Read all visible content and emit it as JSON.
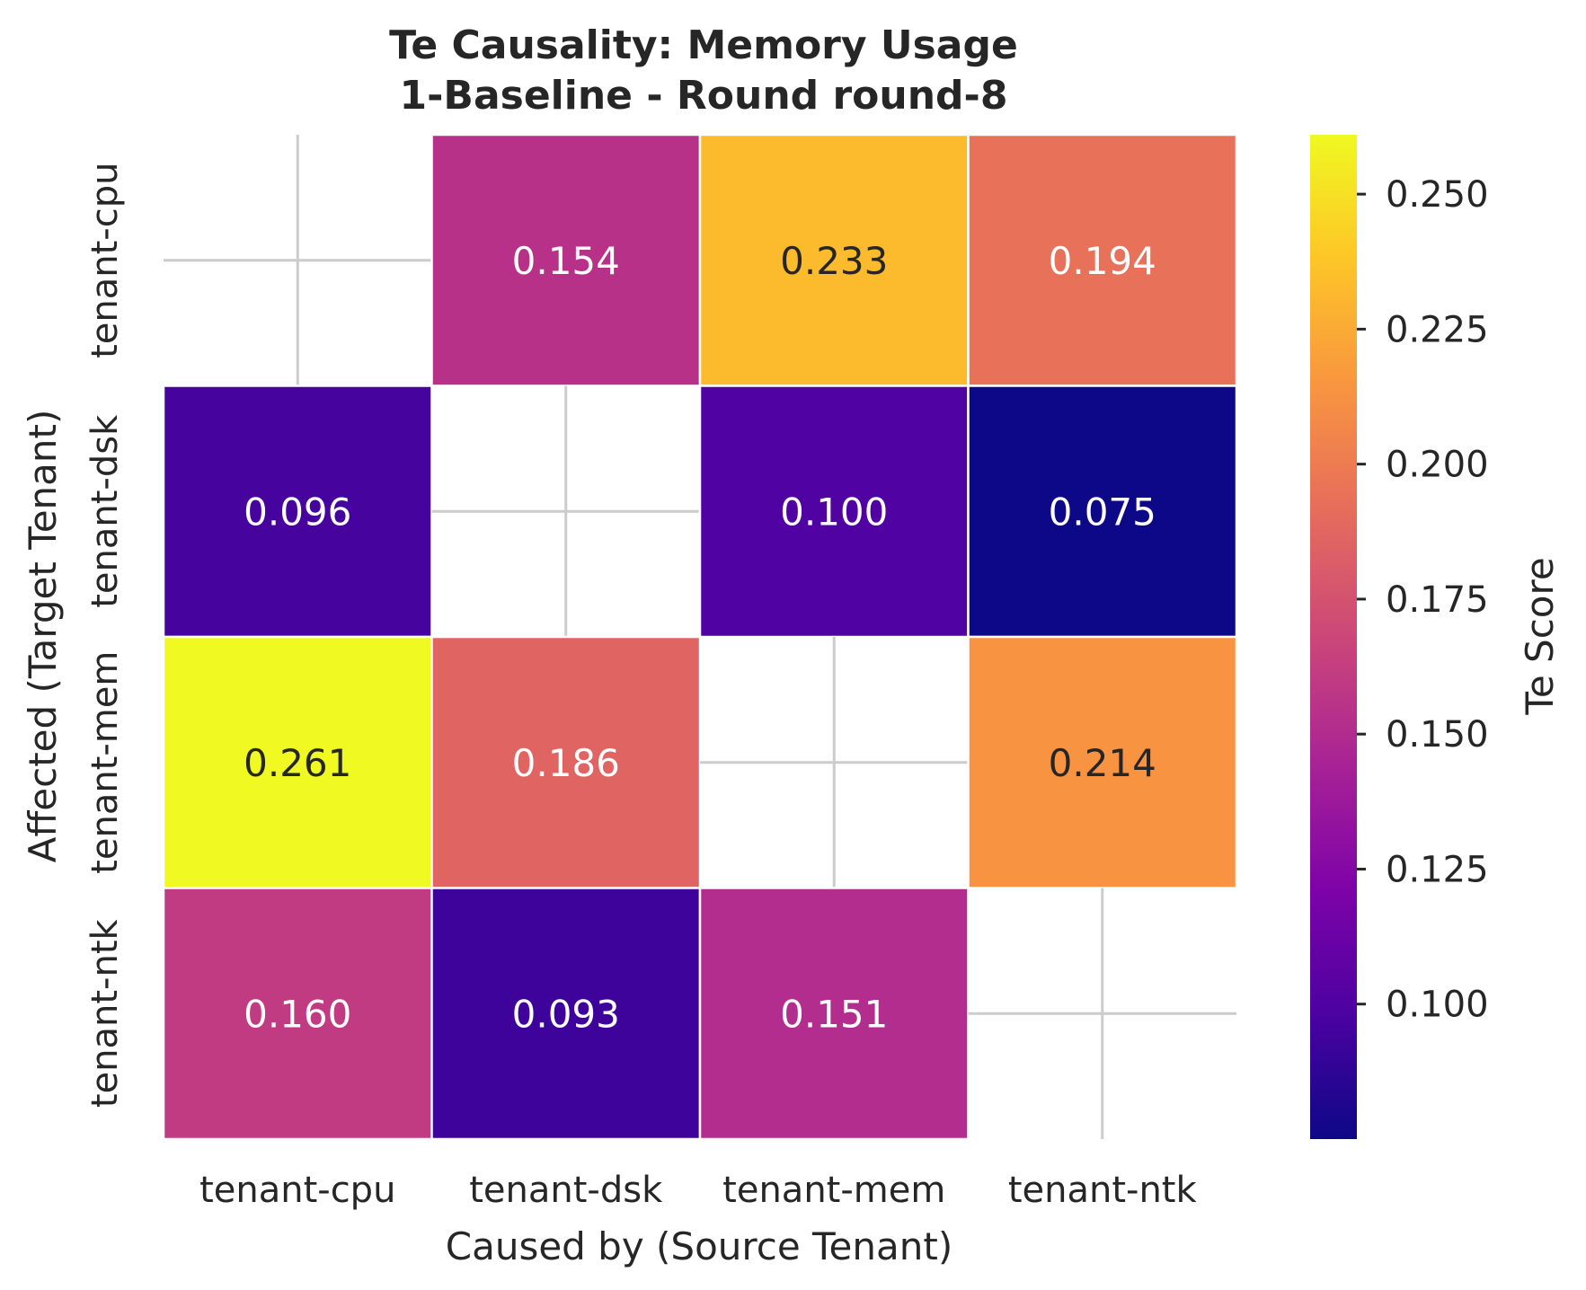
{
  "chart_data": {
    "type": "heatmap",
    "title": [
      "Te Causality: Memory Usage",
      "1-Baseline - Round round-8"
    ],
    "xlabel": "Caused by (Source Tenant)",
    "ylabel": "Affected (Target Tenant)",
    "x_categories": [
      "tenant-cpu",
      "tenant-dsk",
      "tenant-mem",
      "tenant-ntk"
    ],
    "y_categories": [
      "tenant-cpu",
      "tenant-dsk",
      "tenant-mem",
      "tenant-ntk"
    ],
    "values": [
      [
        null,
        0.154,
        0.233,
        0.194
      ],
      [
        0.096,
        null,
        0.1,
        0.075
      ],
      [
        0.261,
        0.186,
        null,
        0.214
      ],
      [
        0.16,
        0.093,
        0.151,
        null
      ]
    ],
    "colorbar": {
      "label": "Te Score",
      "colormap": "plasma",
      "range": [
        0.075,
        0.261
      ],
      "ticks": [
        0.1,
        0.125,
        0.15,
        0.175,
        0.2,
        0.225,
        0.25
      ],
      "tick_labels": [
        "0.100",
        "0.125",
        "0.150",
        "0.175",
        "0.200",
        "0.225",
        "0.250"
      ]
    },
    "grid": true,
    "colors": {
      "missing_cell_background": "#ffffff",
      "grid_line": "#cccccc",
      "cell_border": "#ffffff"
    }
  }
}
